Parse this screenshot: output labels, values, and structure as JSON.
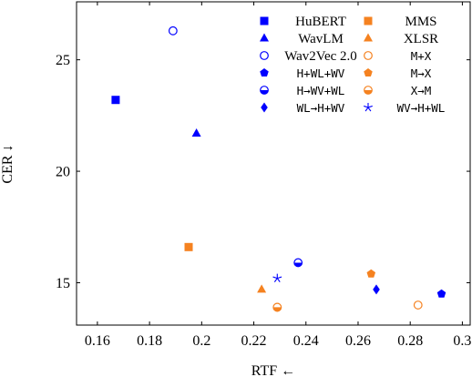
{
  "colors": {
    "blue": "#0000ff",
    "orange": "#f58220",
    "axis": "#000000"
  },
  "chart_data": {
    "type": "scatter",
    "xlabel": "RTF ←",
    "ylabel": "CER ↓",
    "xlim": [
      0.152,
      0.303
    ],
    "ylim": [
      13.1,
      27.6
    ],
    "xticks": [
      0.16,
      0.18,
      0.2,
      0.22,
      0.24,
      0.26,
      0.28,
      0.3
    ],
    "xtick_labels": [
      "0.16",
      "0.18",
      "0.2",
      "0.22",
      "0.24",
      "0.26",
      "0.28",
      "0.3"
    ],
    "yticks": [
      15,
      20,
      25
    ],
    "ytick_labels": [
      "15",
      "20",
      "25"
    ],
    "grid": false,
    "legend_position": "top-right",
    "series": [
      {
        "name": "HuBERT",
        "marker": "square",
        "color": "blue",
        "mono": false,
        "points": [
          {
            "x": 0.167,
            "y": 23.2
          }
        ]
      },
      {
        "name": "MMS",
        "marker": "square",
        "color": "orange",
        "mono": false,
        "points": [
          {
            "x": 0.195,
            "y": 16.6
          }
        ]
      },
      {
        "name": "WavLM",
        "marker": "triangle",
        "color": "blue",
        "mono": false,
        "points": [
          {
            "x": 0.198,
            "y": 21.7
          }
        ]
      },
      {
        "name": "XLSR",
        "marker": "triangle",
        "color": "orange",
        "mono": false,
        "points": [
          {
            "x": 0.223,
            "y": 14.7
          }
        ]
      },
      {
        "name": "Wav2Vec 2.0",
        "marker": "circle-open",
        "color": "blue",
        "mono": false,
        "points": [
          {
            "x": 0.189,
            "y": 26.3
          }
        ]
      },
      {
        "name": "M+X",
        "marker": "circle-open",
        "color": "orange",
        "mono": true,
        "points": [
          {
            "x": 0.229,
            "y": 13.9
          },
          {
            "x": 0.283,
            "y": 14.0
          }
        ]
      },
      {
        "name": "H+WL+WV",
        "marker": "pentagon",
        "color": "blue",
        "mono": true,
        "points": [
          {
            "x": 0.292,
            "y": 14.5
          }
        ]
      },
      {
        "name": "M→X",
        "marker": "pentagon",
        "color": "orange",
        "mono": true,
        "points": [
          {
            "x": 0.265,
            "y": 15.4
          }
        ]
      },
      {
        "name": "H→WV+WL",
        "marker": "circle-half",
        "color": "blue",
        "mono": true,
        "points": [
          {
            "x": 0.237,
            "y": 15.9
          }
        ]
      },
      {
        "name": "X→M",
        "marker": "circle-half",
        "color": "orange",
        "mono": true,
        "points": [
          {
            "x": 0.229,
            "y": 13.9
          }
        ]
      },
      {
        "name": "WL→H+WV",
        "marker": "diamond",
        "color": "blue",
        "mono": true,
        "points": [
          {
            "x": 0.267,
            "y": 14.7
          }
        ]
      },
      {
        "name": "WV→H+WL",
        "marker": "star",
        "color": "blue",
        "mono": true,
        "points": [
          {
            "x": 0.229,
            "y": 15.2
          }
        ]
      }
    ]
  }
}
